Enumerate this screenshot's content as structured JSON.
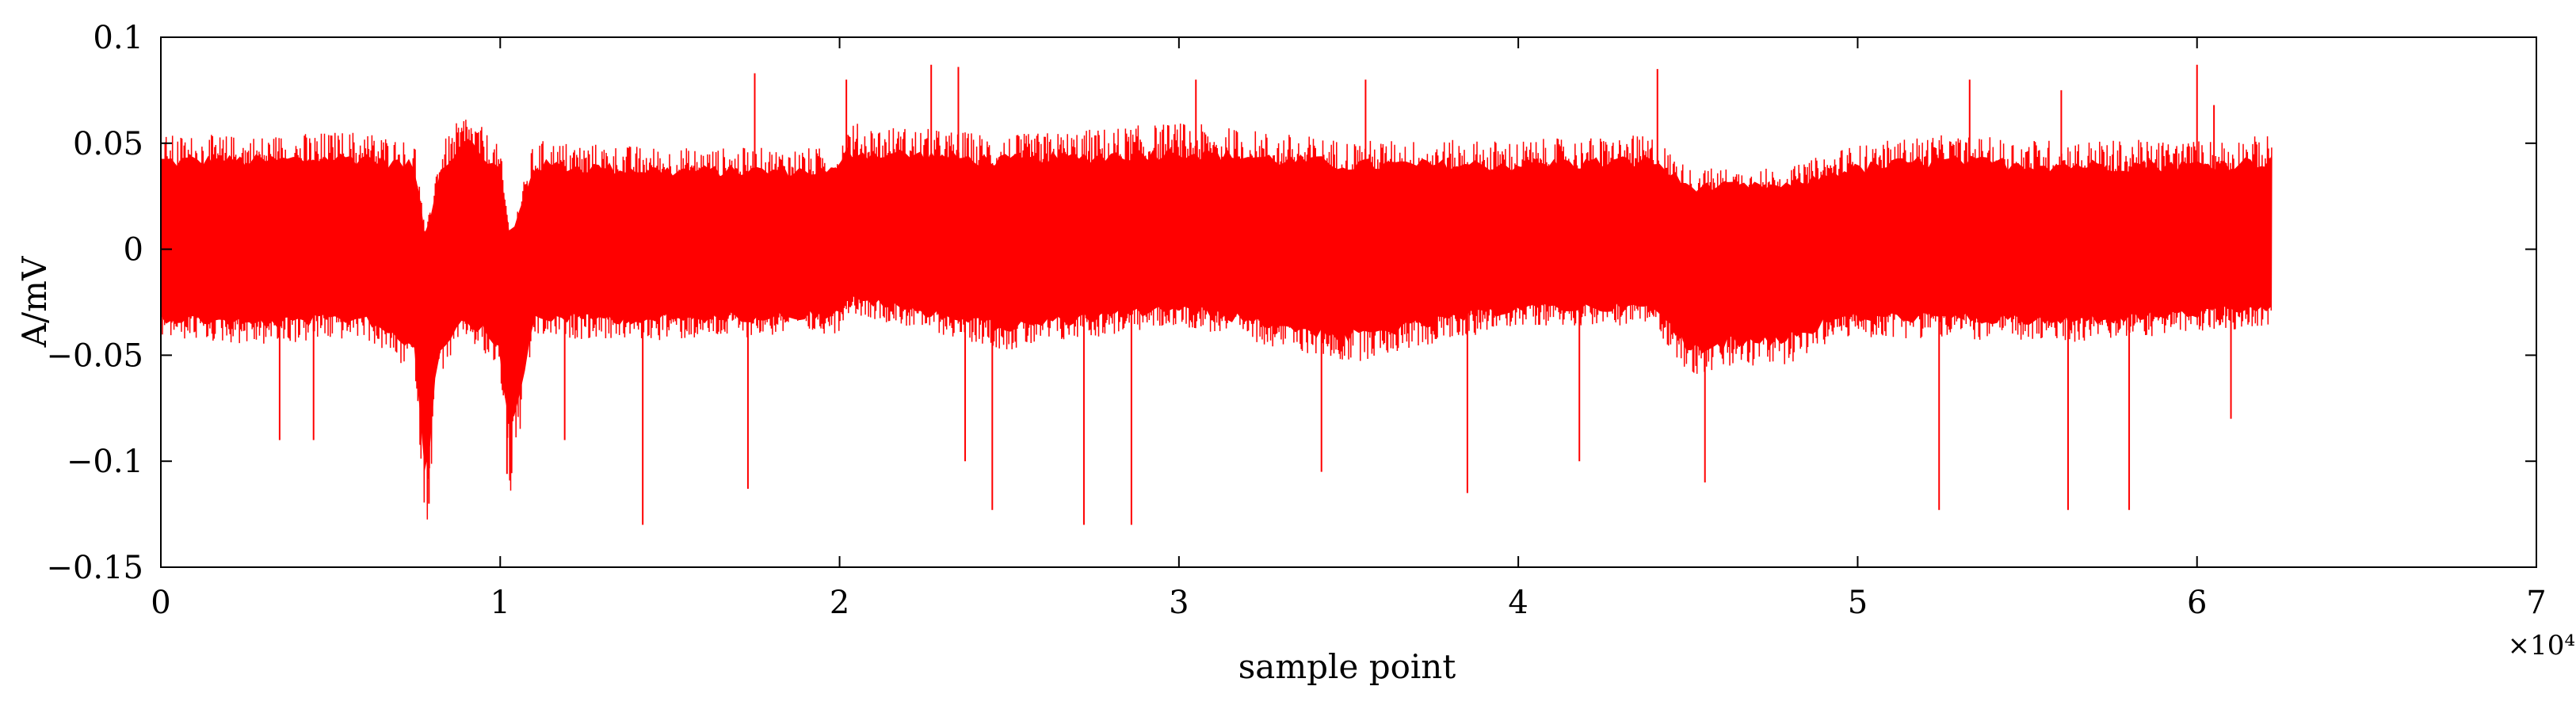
{
  "chart_data": {
    "type": "line",
    "title": "",
    "xlabel": "sample point",
    "ylabel": "A/mV",
    "x_multiplier": "×10⁴",
    "xlim": [
      0,
      7
    ],
    "ylim": [
      -0.15,
      0.1
    ],
    "x_ticks": [
      {
        "value": 0,
        "label": "0"
      },
      {
        "value": 1,
        "label": "1"
      },
      {
        "value": 2,
        "label": "2"
      },
      {
        "value": 3,
        "label": "3"
      },
      {
        "value": 4,
        "label": "4"
      },
      {
        "value": 5,
        "label": "5"
      },
      {
        "value": 6,
        "label": "6"
      },
      {
        "value": 7,
        "label": "7"
      }
    ],
    "y_ticks": [
      {
        "value": 0.1,
        "label": "0.1"
      },
      {
        "value": 0.05,
        "label": "0.05"
      },
      {
        "value": 0,
        "label": "0"
      },
      {
        "value": -0.05,
        "label": "−0.05"
      },
      {
        "value": -0.1,
        "label": "−0.1"
      },
      {
        "value": -0.15,
        "label": "−0.15"
      }
    ],
    "grid": false,
    "legend": "none",
    "series_color": "#ff0000",
    "signal": {
      "x_end": 6.22,
      "envelope_x": [
        0,
        0.3,
        0.6,
        0.75,
        0.78,
        0.82,
        0.9,
        1.0,
        1.03,
        1.1,
        1.5,
        2.0,
        2.02,
        2.5,
        3.0,
        3.5,
        4.0,
        4.4,
        4.5,
        4.8,
        4.95,
        5.2,
        5.6,
        6.0,
        6.22
      ],
      "envelope_upper": [
        0.045,
        0.045,
        0.047,
        0.042,
        0.005,
        0.04,
        0.055,
        0.04,
        0.005,
        0.043,
        0.04,
        0.04,
        0.05,
        0.045,
        0.05,
        0.043,
        0.043,
        0.045,
        0.032,
        0.032,
        0.04,
        0.045,
        0.043,
        0.043,
        0.045
      ],
      "envelope_lower": [
        -0.035,
        -0.038,
        -0.035,
        -0.05,
        -0.115,
        -0.05,
        -0.035,
        -0.05,
        -0.1,
        -0.035,
        -0.036,
        -0.033,
        -0.025,
        -0.04,
        -0.03,
        -0.045,
        -0.03,
        -0.03,
        -0.05,
        -0.045,
        -0.035,
        -0.035,
        -0.037,
        -0.033,
        -0.03
      ],
      "spikes": [
        {
          "x": 0.79,
          "y": -0.12
        },
        {
          "x": 1.02,
          "y": -0.106
        },
        {
          "x": 1.42,
          "y": -0.13
        },
        {
          "x": 1.19,
          "y": -0.09
        },
        {
          "x": 1.73,
          "y": -0.113
        },
        {
          "x": 2.37,
          "y": -0.1
        },
        {
          "x": 2.45,
          "y": -0.123
        },
        {
          "x": 2.72,
          "y": -0.13
        },
        {
          "x": 2.86,
          "y": -0.13
        },
        {
          "x": 3.42,
          "y": -0.105
        },
        {
          "x": 3.85,
          "y": -0.115
        },
        {
          "x": 4.18,
          "y": -0.1
        },
        {
          "x": 4.55,
          "y": -0.11
        },
        {
          "x": 5.24,
          "y": -0.123
        },
        {
          "x": 5.62,
          "y": -0.123
        },
        {
          "x": 5.8,
          "y": -0.123
        },
        {
          "x": 6.1,
          "y": -0.08
        },
        {
          "x": 0.35,
          "y": -0.09
        },
        {
          "x": 0.45,
          "y": -0.09
        },
        {
          "x": 1.75,
          "y": 0.083
        },
        {
          "x": 2.02,
          "y": 0.08
        },
        {
          "x": 2.27,
          "y": 0.087
        },
        {
          "x": 2.35,
          "y": 0.086
        },
        {
          "x": 3.05,
          "y": 0.08
        },
        {
          "x": 3.55,
          "y": 0.08
        },
        {
          "x": 4.41,
          "y": 0.085
        },
        {
          "x": 5.33,
          "y": 0.08
        },
        {
          "x": 5.6,
          "y": 0.075
        },
        {
          "x": 6.0,
          "y": 0.087
        },
        {
          "x": 6.05,
          "y": 0.068
        }
      ]
    }
  }
}
